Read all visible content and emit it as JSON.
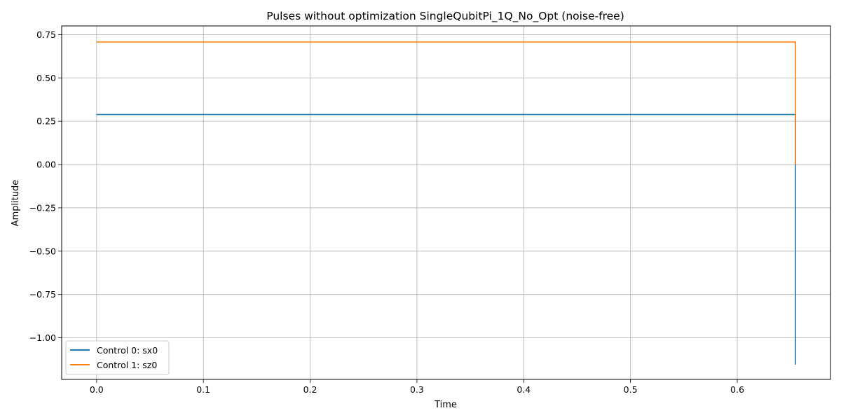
{
  "chart_data": {
    "type": "line",
    "drawstyle": "steps-post",
    "title": "Pulses without optimization SingleQubitPi_1Q_No_Opt (noise-free)",
    "xlabel": "Time",
    "ylabel": "Amplitude",
    "xlim": [
      -0.0327,
      0.6873
    ],
    "ylim": [
      -1.24,
      0.8
    ],
    "xticks": [
      0.0,
      0.1,
      0.2,
      0.3,
      0.4,
      0.5,
      0.6
    ],
    "xtick_labels": [
      "0.0",
      "0.1",
      "0.2",
      "0.3",
      "0.4",
      "0.5",
      "0.6"
    ],
    "yticks": [
      0.75,
      0.5,
      0.25,
      0.0,
      -0.25,
      -0.5,
      -0.75,
      -1.0
    ],
    "ytick_labels": [
      "0.75",
      "0.50",
      "0.25",
      "0.00",
      "−0.25",
      "−0.50",
      "−0.75",
      "−1.00"
    ],
    "grid": true,
    "legend_position": "lower-left",
    "series": [
      {
        "name": "Control 0: sx0",
        "color": "#1f77b4",
        "x": [
          0.0,
          0.6545,
          0.6545,
          0.6545
        ],
        "y": [
          0.2887,
          0.2887,
          0.0,
          -1.1547
        ]
      },
      {
        "name": "Control 1: sz0",
        "color": "#ff7f0e",
        "x": [
          0.0,
          0.6545,
          0.6545
        ],
        "y": [
          0.7071,
          0.7071,
          0.0
        ]
      }
    ]
  }
}
